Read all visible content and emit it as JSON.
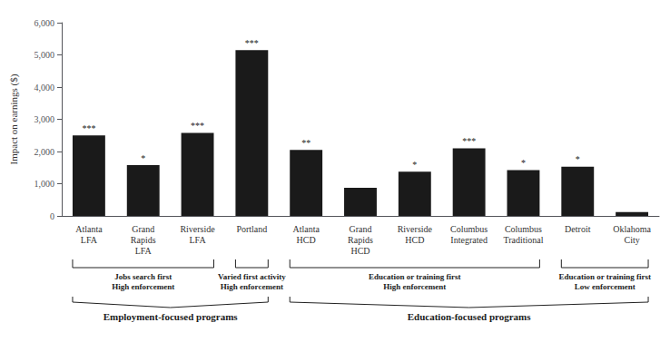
{
  "chart_data": {
    "type": "bar",
    "categories": [
      "Atlanta\nLFA",
      "Grand\nRapids\nLFA",
      "Riverside\nLFA",
      "Portland",
      "Atlanta\nHCD",
      "Grand\nRapids\nHCD",
      "Riverside\nHCD",
      "Columbus\nIntegrated",
      "Columbus\nTraditional",
      "Detroit",
      "Oklahoma\nCity"
    ],
    "values": [
      2500,
      1575,
      2575,
      5150,
      2050,
      875,
      1375,
      2100,
      1425,
      1525,
      120
    ],
    "color": "#1a1a1a",
    "ylabel": "Impact on earnings ($)",
    "ylim": [
      0,
      6000
    ],
    "yticks": [
      0,
      {
        "value": 1000,
        "label": "1,000"
      },
      {
        "value": 2000,
        "label": "2,000"
      },
      {
        "value": 3000,
        "label": "3,000"
      },
      {
        "value": 4000,
        "label": "4,000"
      },
      {
        "value": 5000,
        "label": "5,000"
      },
      {
        "value": 6000,
        "label": "6,000"
      }
    ],
    "grid": false,
    "annotations": [
      {
        "category": "Atlanta\nLFA",
        "text": "***"
      },
      {
        "category": "Grand\nRapids\nLFA",
        "text": "*"
      },
      {
        "category": "Riverside\nLFA",
        "text": "***"
      },
      {
        "category": "Portland",
        "text": "***"
      },
      {
        "category": "Atlanta\nHCD",
        "text": "**"
      },
      {
        "category": "Riverside\nHCD",
        "text": "*"
      },
      {
        "category": "Columbus\nIntegrated",
        "text": "***"
      },
      {
        "category": "Columbus\nTraditional",
        "text": "*"
      },
      {
        "category": "Detroit",
        "text": "*"
      }
    ],
    "subgroups": [
      {
        "label": "Jobs search first\nHigh enforcement",
        "members": [
          "Atlanta\nLFA",
          "Grand\nRapids\nLFA",
          "Riverside\nLFA"
        ]
      },
      {
        "label": "Varied first activity\nHigh enforcement",
        "members": [
          "Portland"
        ]
      },
      {
        "label": "Education or training first\nHigh enforcement",
        "members": [
          "Atlanta\nHCD",
          "Grand\nRapids\nHCD",
          "Riverside\nHCD",
          "Columbus\nIntegrated",
          "Columbus\nTraditional"
        ]
      },
      {
        "label": "Education or training first\nLow enforcement",
        "members": [
          "Detroit",
          "Oklahoma\nCity"
        ]
      }
    ],
    "programs": [
      {
        "label": "Employment-focused programs",
        "members": [
          "Atlanta\nLFA",
          "Grand\nRapids\nLFA",
          "Riverside\nLFA",
          "Portland"
        ]
      },
      {
        "label": "Education-focused programs",
        "members": [
          "Atlanta\nHCD",
          "Grand\nRapids\nHCD",
          "Riverside\nHCD",
          "Columbus\nIntegrated",
          "Columbus\nTraditional",
          "Detroit",
          "Oklahoma\nCity"
        ]
      }
    ]
  }
}
